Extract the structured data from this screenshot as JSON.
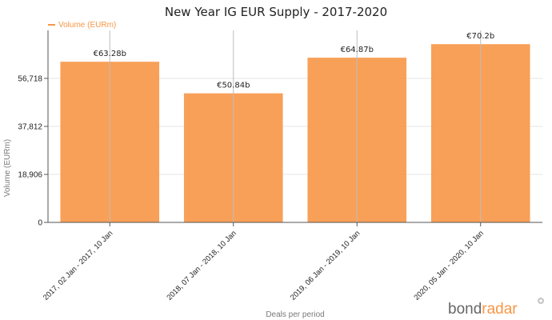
{
  "chart_data": {
    "type": "bar",
    "title": "New Year IG EUR Supply - 2017-2020",
    "legend": {
      "label": "Volume (EURm)",
      "position": "top-left"
    },
    "categories": [
      "2017, 02 Jan - 2017, 10 Jan",
      "2018, 07 Jan - 2018, 10 Jan",
      "2019, 06 Jan - 2019, 10 Jan",
      "2020, 05 Jan - 2020, 10 Jan"
    ],
    "values": [
      63280,
      50840,
      64870,
      70200
    ],
    "data_labels": [
      "€63.28b",
      "€50.84b",
      "€64.87b",
      "€70.2b"
    ],
    "ylabel": "Volume (EURm)",
    "xlabel": "Deals per period",
    "yticks": [
      0,
      18906,
      37812,
      56718
    ],
    "ytick_labels": [
      "0",
      "18,906",
      "37,812",
      "56,718"
    ],
    "ylim": [
      0,
      75624
    ],
    "bar_color": "#f79646",
    "grid": true
  },
  "branding": {
    "part1": "bond",
    "part2": "radar"
  }
}
